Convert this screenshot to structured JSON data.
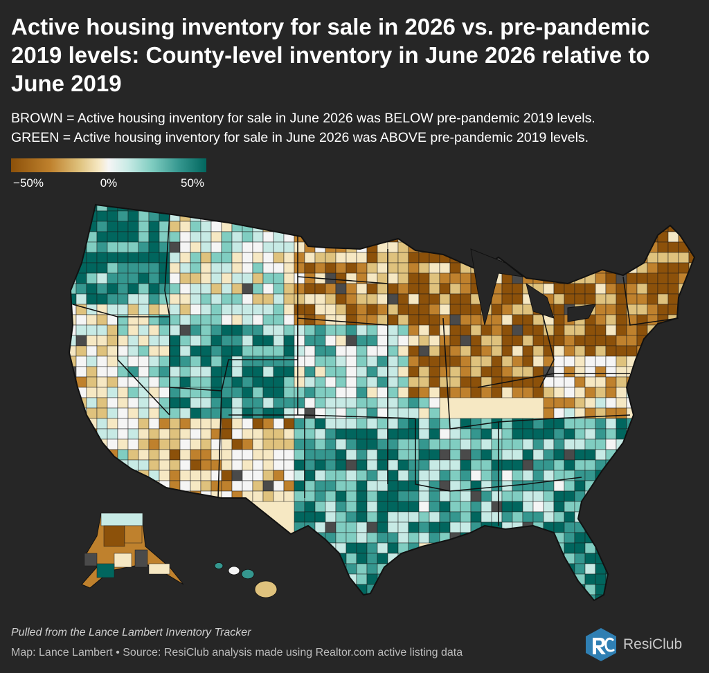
{
  "title": "Active housing inventory for sale in 2026 vs. pre-pandemic 2019 levels: County-level inventory in June 2026 relative to June 2019",
  "subtitle": {
    "line1": "BROWN = Active housing inventory for sale in June 2026 was BELOW pre-pandemic 2019 levels.",
    "line2": "GREEN = Active housing inventory for sale in June 2026 was ABOVE pre-pandemic 2019 levels."
  },
  "legend": {
    "ticks": [
      "−50%",
      "0%",
      "50%"
    ],
    "colors": [
      "#8c510a",
      "#bf812d",
      "#dfc27d",
      "#f6e8c3",
      "#f5f5f5",
      "#c7eae5",
      "#80cdc1",
      "#35978f",
      "#01665e"
    ],
    "no_data_color": "#4a4a4a"
  },
  "map": {
    "regions": [
      {
        "name": "Pacific Northwest",
        "level": 1.2
      },
      {
        "name": "California",
        "level": -0.2
      },
      {
        "name": "Nevada",
        "level": 0.3
      },
      {
        "name": "Northern Rockies",
        "level": 0.1
      },
      {
        "name": "Utah / Colorado",
        "level": 1.0
      },
      {
        "name": "Southwest",
        "level": -0.6
      },
      {
        "name": "Texas / Oklahoma",
        "level": 1.0
      },
      {
        "name": "Northern Plains",
        "level": -0.9
      },
      {
        "name": "Central Plains",
        "level": 0.4
      },
      {
        "name": "Midwest",
        "level": -1.2
      },
      {
        "name": "Northeast",
        "level": -1.3
      },
      {
        "name": "Mid-Atlantic",
        "level": -0.5
      },
      {
        "name": "Southeast",
        "level": 0.9
      },
      {
        "name": "Florida",
        "level": 1.3
      },
      {
        "name": "Alaska",
        "level": -1.0
      },
      {
        "name": "Hawaii",
        "level": -0.3
      }
    ]
  },
  "footer": {
    "source_note": "Pulled from the Lance Lambert Inventory Tracker",
    "credit": "Map: Lance Lambert • Source: ResiClub analysis made using Realtor.com active listing data",
    "logo_text": "ResiClub"
  }
}
